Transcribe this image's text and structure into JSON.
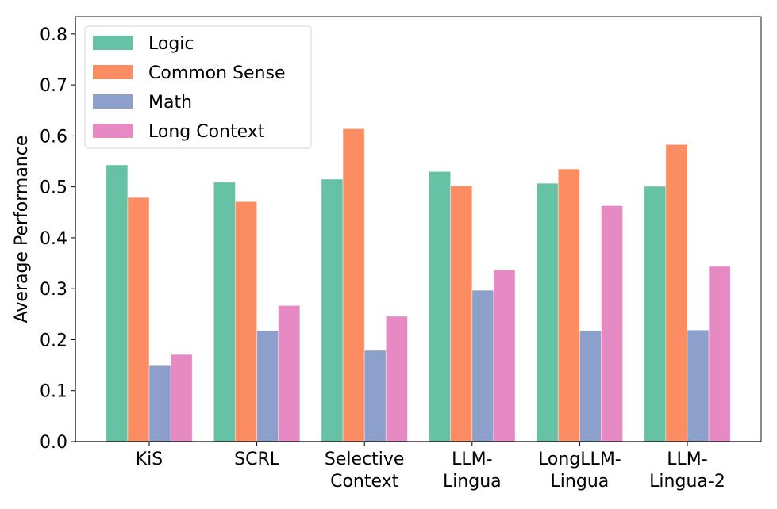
{
  "chart_data": {
    "type": "bar",
    "title": "",
    "xlabel": "",
    "ylabel": "Average Performance",
    "ylim": [
      0,
      0.834
    ],
    "yticks": [
      "0.0",
      "0.1",
      "0.2",
      "0.3",
      "0.4",
      "0.5",
      "0.6",
      "0.7",
      "0.8"
    ],
    "ytick_values": [
      0.0,
      0.1,
      0.2,
      0.3,
      0.4,
      0.5,
      0.6,
      0.7,
      0.8
    ],
    "categories": [
      [
        "KiS"
      ],
      [
        "SCRL"
      ],
      [
        "Selective",
        "Context"
      ],
      [
        "LLM-",
        "Lingua"
      ],
      [
        "LongLLM-",
        "Lingua"
      ],
      [
        "LLM-",
        "Lingua-2"
      ]
    ],
    "legend_position": "top-left",
    "grid": false,
    "series": [
      {
        "name": "Logic",
        "color": "#66c2a5",
        "values": [
          0.543,
          0.509,
          0.515,
          0.53,
          0.507,
          0.501
        ]
      },
      {
        "name": "Common Sense",
        "color": "#fc8d62",
        "values": [
          0.479,
          0.471,
          0.614,
          0.502,
          0.535,
          0.583
        ]
      },
      {
        "name": "Math",
        "color": "#8da0cb",
        "values": [
          0.149,
          0.218,
          0.179,
          0.297,
          0.218,
          0.219
        ]
      },
      {
        "name": "Long Context",
        "color": "#e78ac3",
        "values": [
          0.171,
          0.267,
          0.246,
          0.337,
          0.463,
          0.344
        ]
      }
    ]
  }
}
